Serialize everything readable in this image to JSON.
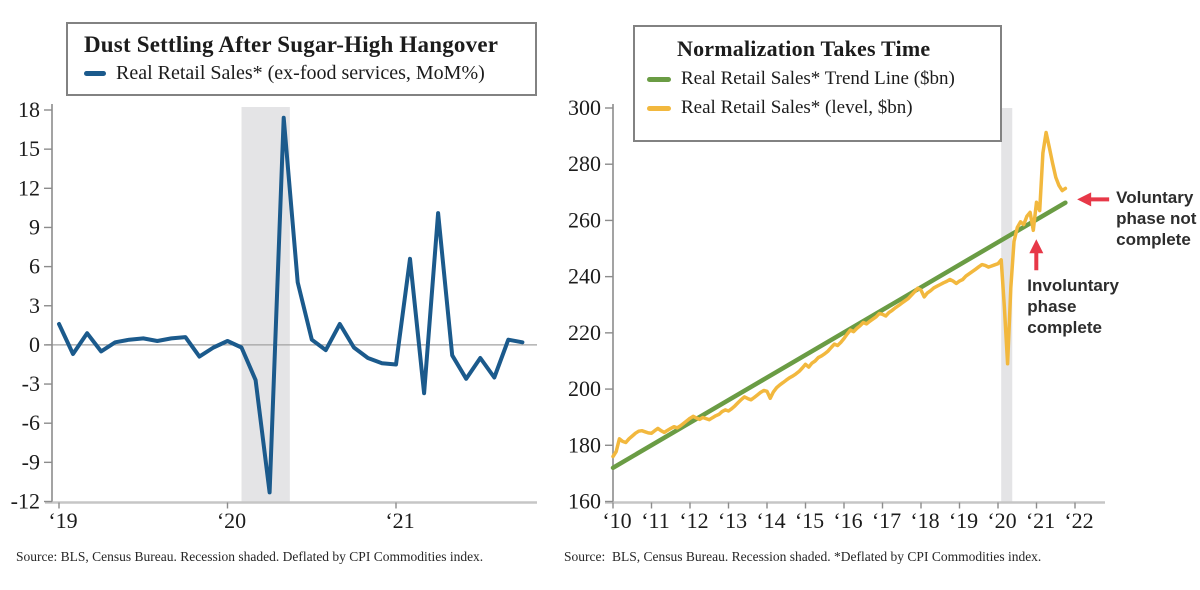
{
  "colors": {
    "blue": "#1b5a8c",
    "green": "#6a9c44",
    "yellow": "#f2b83e",
    "red": "#e73848",
    "recession_band": "#e4e4e6",
    "axis_light": "#c6c6c6",
    "axis_dark": "#8c8c8c",
    "zero_line": "#a2a2a2",
    "tick_text": "#1c1c1c"
  },
  "chart_data": [
    {
      "type": "line",
      "title": "Dust Settling After Sugar-High Hangover",
      "legend": [
        {
          "label": "Real Retail Sales* (ex-food services, MoM%)",
          "color_key": "blue"
        }
      ],
      "ylabel": "MoM %",
      "ylim": [
        -12,
        18
      ],
      "y_ticks": [
        18,
        15,
        12,
        9,
        6,
        3,
        0,
        -3,
        -6,
        -9,
        -12
      ],
      "x_ticks": [
        {
          "year": 2019,
          "label": "‘19"
        },
        {
          "year": 2020,
          "label": "‘20"
        },
        {
          "year": 2021,
          "label": "‘21"
        }
      ],
      "grid": "zero-line-only",
      "legend_position": "top-box",
      "recession_band": {
        "start": 2020.083,
        "end": 2020.37
      },
      "series_start": "2019-01",
      "frequency": "monthly",
      "values": [
        1.6,
        -0.7,
        0.9,
        -0.5,
        0.2,
        0.4,
        0.5,
        0.3,
        0.5,
        0.6,
        -0.9,
        -0.2,
        0.3,
        -0.2,
        -2.7,
        -11.3,
        17.4,
        4.8,
        0.4,
        -0.4,
        1.6,
        -0.2,
        -1.0,
        -1.4,
        -1.5,
        6.6,
        -3.7,
        10.1,
        -0.8,
        -2.6,
        -1.0,
        -2.5,
        0.4,
        0.2
      ],
      "source": "Source: BLS, Census Bureau. Recession shaded. Deflated by CPI Commodities index."
    },
    {
      "type": "line",
      "title": "Normalization Takes Time",
      "legend": [
        {
          "label": "Real Retail Sales* Trend Line ($bn)",
          "color_key": "green"
        },
        {
          "label": "Real Retail Sales* (level, $bn)",
          "color_key": "yellow"
        }
      ],
      "ylabel": "$bn",
      "ylim": [
        160,
        300
      ],
      "y_ticks": [
        300,
        280,
        260,
        240,
        220,
        200,
        180,
        160
      ],
      "x_ticks": [
        {
          "year": 2010,
          "label": "‘10"
        },
        {
          "year": 2011,
          "label": "‘11"
        },
        {
          "year": 2012,
          "label": "‘12"
        },
        {
          "year": 2013,
          "label": "‘13"
        },
        {
          "year": 2014,
          "label": "‘14"
        },
        {
          "year": 2015,
          "label": "‘15"
        },
        {
          "year": 2016,
          "label": "‘16"
        },
        {
          "year": 2017,
          "label": "‘17"
        },
        {
          "year": 2018,
          "label": "‘18"
        },
        {
          "year": 2019,
          "label": "‘19"
        },
        {
          "year": 2020,
          "label": "‘20"
        },
        {
          "year": 2021,
          "label": "‘21"
        },
        {
          "year": 2022,
          "label": "‘22"
        }
      ],
      "grid": "none",
      "legend_position": "top-box",
      "recession_band": {
        "start": 2020.083,
        "end": 2020.37
      },
      "trend": {
        "x0": 2010.0,
        "v0": 172.0,
        "x1": 2021.75,
        "v1": 266.3
      },
      "series_start": "2010-01",
      "frequency": "monthly",
      "values": [
        176.0,
        177.8,
        182.3,
        181.4,
        181.0,
        182.3,
        183.3,
        184.3,
        185.0,
        185.2,
        184.8,
        184.4,
        184.3,
        185.2,
        186.0,
        185.2,
        184.6,
        185.3,
        186.0,
        186.6,
        186.2,
        186.9,
        187.8,
        188.7,
        189.6,
        190.3,
        189.7,
        189.2,
        189.9,
        189.5,
        189.1,
        189.8,
        190.5,
        191.0,
        192.0,
        192.6,
        192.2,
        193.0,
        194.0,
        195.2,
        196.3,
        197.2,
        196.6,
        196.2,
        197.0,
        197.9,
        198.8,
        199.5,
        199.2,
        196.7,
        199.0,
        200.5,
        201.5,
        202.3,
        203.2,
        204.0,
        204.6,
        205.4,
        206.3,
        207.5,
        208.8,
        207.8,
        209.2,
        210.0,
        211.2,
        211.8,
        212.6,
        213.5,
        214.8,
        216.0,
        215.5,
        216.6,
        218.0,
        219.6,
        221.0,
        220.4,
        221.6,
        222.5,
        223.7,
        223.2,
        224.1,
        224.9,
        225.7,
        226.9,
        226.6,
        226.0,
        227.2,
        228.0,
        228.9,
        229.7,
        230.6,
        231.4,
        232.2,
        233.4,
        234.6,
        235.9,
        235.2,
        232.8,
        234.2,
        235.0,
        236.0,
        236.6,
        237.2,
        237.8,
        238.3,
        239.0,
        238.4,
        237.6,
        238.4,
        239.0,
        240.2,
        241.0,
        241.8,
        242.6,
        243.5,
        244.3,
        244.0,
        243.4,
        243.8,
        244.2,
        244.6,
        246.0,
        229.0,
        209.0,
        236.0,
        252.5,
        257.5,
        259.5,
        258.5,
        261.5,
        262.9,
        256.5,
        266.5,
        263.5,
        284.0,
        291.3,
        286.0,
        280.5,
        275.3,
        272.4,
        270.6,
        271.4
      ],
      "annotations": [
        {
          "id": "voluntary",
          "lines": [
            "Voluntary",
            "phase not",
            "complete"
          ],
          "direction": "left",
          "target": {
            "x": 2021.9,
            "v": 267.5
          }
        },
        {
          "id": "involuntary",
          "lines": [
            "Involuntary",
            "phase",
            "complete"
          ],
          "direction": "up",
          "target": {
            "x": 2020.917,
            "v": 256.5
          }
        }
      ],
      "source": "Source:  BLS, Census Bureau. Recession shaded. *Deflated by CPI Commodities index."
    }
  ]
}
